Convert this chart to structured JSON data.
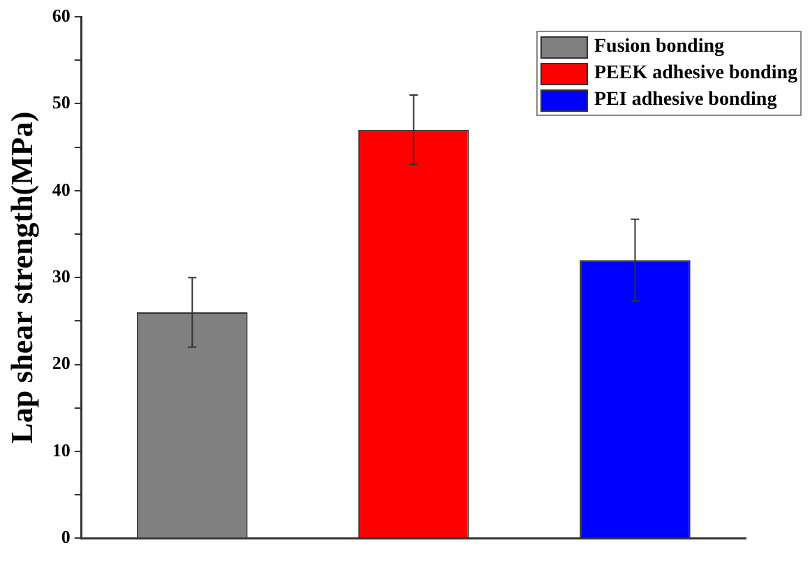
{
  "chart_data": {
    "type": "bar",
    "ylabel": "Lap shear strength(MPa)",
    "categories": [
      null,
      null,
      null
    ],
    "series": [
      {
        "name": "Fusion bonding",
        "color": "#808080",
        "values": [
          26,
          null,
          null
        ],
        "errors": [
          4,
          null,
          null
        ]
      },
      {
        "name": "PEEK adhesive bonding",
        "color": "#ff0000",
        "values": [
          null,
          47,
          null
        ],
        "errors": [
          null,
          4,
          null
        ]
      },
      {
        "name": "PEI adhesive bonding",
        "color": "#0000ff",
        "values": [
          null,
          null,
          32
        ],
        "errors": [
          null,
          null,
          4.7
        ]
      }
    ],
    "ylim": [
      0,
      60
    ],
    "yticks": [
      0,
      {
        "value": 5,
        "label": null
      },
      10,
      {
        "value": 15,
        "label": null
      },
      20,
      {
        "value": 25,
        "label": null
      },
      30,
      {
        "value": 35,
        "label": null
      },
      40,
      {
        "value": 45,
        "label": null
      },
      50,
      {
        "value": 55,
        "label": null
      },
      60
    ],
    "grid": false,
    "legend": "top right"
  }
}
